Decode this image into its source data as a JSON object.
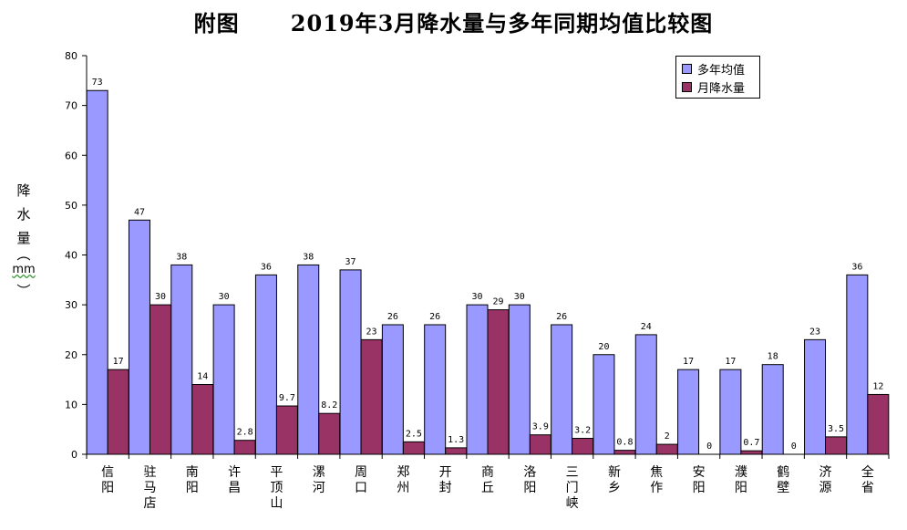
{
  "title": "附图      2019年3月降水量与多年同期均值比较图",
  "chart_data": {
    "type": "bar",
    "title": "附图      2019年3月降水量与多年同期均值比较图",
    "ylabel": "降水量（mm）",
    "ylabel_chars": [
      "降",
      "水",
      "量",
      "︵",
      "mm",
      "︶"
    ],
    "ylim": [
      0,
      80
    ],
    "yticks": [
      0,
      10,
      20,
      30,
      40,
      50,
      60,
      70,
      80
    ],
    "categories": [
      "信阳",
      "驻马店",
      "南阳",
      "许昌",
      "平顶山",
      "漯河",
      "周口",
      "郑州",
      "开封",
      "商丘",
      "洛阳",
      "三门峡",
      "新乡",
      "焦作",
      "安阳",
      "濮阳",
      "鹤壁",
      "济源",
      "全省"
    ],
    "series": [
      {
        "name": "多年均值",
        "color": "#9999ff",
        "values": [
          73,
          47,
          38,
          30,
          36,
          38,
          37,
          26,
          26,
          30,
          30,
          26,
          20,
          24,
          17,
          17,
          18,
          23,
          36
        ],
        "labels": [
          "73",
          "47",
          "38",
          "30",
          "36",
          "38",
          "37",
          "26",
          "26",
          "30",
          "30",
          "26",
          "20",
          "24",
          "17",
          "17",
          "18",
          "23",
          "36"
        ]
      },
      {
        "name": "月降水量",
        "color": "#993366",
        "values": [
          17,
          30,
          14,
          2.8,
          9.7,
          8.2,
          23,
          2.5,
          1.3,
          29,
          3.9,
          3.2,
          0.8,
          2,
          0,
          0.7,
          0,
          3.5,
          12
        ],
        "labels": [
          "17",
          "30",
          "14",
          "2.8",
          "9.7",
          "8.2",
          "23",
          "2.5",
          "1.3",
          "29",
          "3.9",
          "3.2",
          "0.8",
          "2",
          "0",
          "0.7",
          "0",
          "3.5",
          "12"
        ]
      }
    ],
    "legend": "top-right",
    "grid": false
  }
}
